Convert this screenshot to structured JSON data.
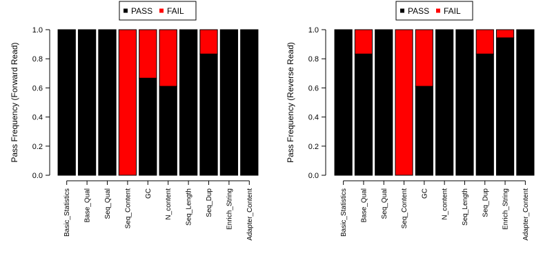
{
  "chart_data": [
    {
      "type": "bar",
      "stacked": true,
      "categories": [
        "Basic_Statistics",
        "Base_Qual",
        "Seq_Qual",
        "Seq_Content",
        "GC",
        "N_content",
        "Seq_Length",
        "Seq_Dup",
        "Enrich_String",
        "Adapter_Content"
      ],
      "series": [
        {
          "name": "PASS",
          "color": "#000000",
          "values": [
            1.0,
            1.0,
            1.0,
            0.0,
            0.667,
            0.611,
            1.0,
            0.833,
            1.0,
            1.0
          ]
        },
        {
          "name": "FAIL",
          "color": "#ff0000",
          "values": [
            0.0,
            0.0,
            0.0,
            1.0,
            0.333,
            0.389,
            0.0,
            0.167,
            0.0,
            0.0
          ]
        }
      ],
      "ylabel": "Pass Frequency (Forward Read)",
      "yticks": [
        "0.0",
        "0.2",
        "0.4",
        "0.6",
        "0.8",
        "1.0"
      ],
      "ylim": [
        0,
        1
      ],
      "legend_position": "top-center",
      "grid": false
    },
    {
      "type": "bar",
      "stacked": true,
      "categories": [
        "Basic_Statistics",
        "Base_Qual",
        "Seq_Qual",
        "Seq_Content",
        "GC",
        "N_content",
        "Seq_Length",
        "Seq_Dup",
        "Enrich_String",
        "Adapter_Content"
      ],
      "series": [
        {
          "name": "PASS",
          "color": "#000000",
          "values": [
            1.0,
            0.833,
            1.0,
            0.0,
            0.611,
            1.0,
            1.0,
            0.833,
            0.944,
            1.0
          ]
        },
        {
          "name": "FAIL",
          "color": "#ff0000",
          "values": [
            0.0,
            0.167,
            0.0,
            1.0,
            0.389,
            0.0,
            0.0,
            0.167,
            0.056,
            0.0
          ]
        }
      ],
      "ylabel": "Pass Frequency (Reverse Read)",
      "yticks": [
        "0.0",
        "0.2",
        "0.4",
        "0.6",
        "0.8",
        "1.0"
      ],
      "ylim": [
        0,
        1
      ],
      "legend_position": "top-center",
      "grid": false
    }
  ]
}
